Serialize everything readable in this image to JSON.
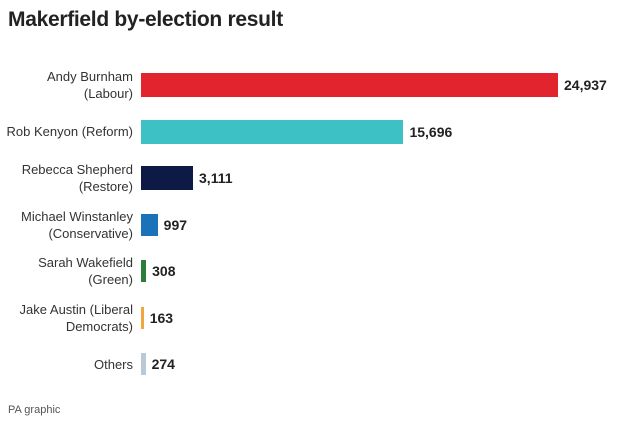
{
  "chart_data": {
    "type": "bar",
    "orientation": "horizontal",
    "title": "Makerfield by-election result",
    "categories": [
      "Andy Burnham (Labour)",
      "Rob Kenyon (Reform)",
      "Rebecca Shepherd (Restore)",
      "Michael Winstanley (Conservative)",
      "Sarah Wakefield (Green)",
      "Jake Austin (Liberal Democrats)",
      "Others"
    ],
    "values": [
      24937,
      15696,
      3111,
      997,
      308,
      163,
      274
    ],
    "value_labels": [
      "24,937",
      "15,696",
      "3,111",
      "997",
      "308",
      "163",
      "274"
    ],
    "colors": [
      "#e2242f",
      "#3dc1c4",
      "#0e1a46",
      "#1b72b8",
      "#2b7b3b",
      "#f2a541",
      "#b9cad6"
    ],
    "source": "PA graphic"
  }
}
